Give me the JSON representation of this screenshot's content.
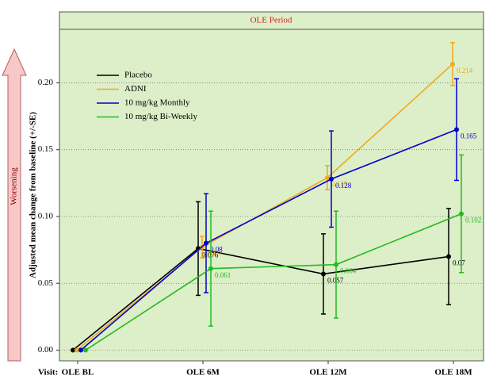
{
  "chart_data": {
    "type": "line",
    "panel_title": "OLE Period",
    "y_label": "Adjusted mean change from baseline (+/-SE)",
    "x_label": "Visit:",
    "arrow_label": "Worsening",
    "categories": [
      "OLE BL",
      "OLE 6M",
      "OLE 12M",
      "OLE 18M"
    ],
    "ylim": [
      -0.008,
      0.24
    ],
    "yticks": [
      {
        "value": 0,
        "label": "0.00"
      },
      {
        "value": 0.05,
        "label": "0.05"
      },
      {
        "value": 0.1,
        "label": "0.10"
      },
      {
        "value": 0.15,
        "label": "0.15"
      },
      {
        "value": 0.2,
        "label": "0.20"
      }
    ],
    "grid": true,
    "legend": "upper left",
    "series": [
      {
        "name": "Placebo",
        "color": "#000000",
        "values": [
          0,
          0.076,
          0.057,
          0.07
        ],
        "errors": [
          null,
          0.035,
          0.03,
          0.036
        ],
        "value_labels": [
          null,
          "0.076",
          "0.057",
          "0.07"
        ]
      },
      {
        "name": "ADNI",
        "color": "#f0a820",
        "values": [
          0,
          0.077,
          0.129,
          0.214
        ],
        "errors": [
          null,
          0.008,
          0.009,
          0.016
        ],
        "value_labels": [
          null,
          "0.077",
          "0.129",
          "0.214"
        ]
      },
      {
        "name": "10 mg/kg Monthly",
        "color": "#0000cc",
        "values": [
          0,
          0.08,
          0.128,
          0.165
        ],
        "errors": [
          null,
          0.037,
          0.036,
          0.038
        ],
        "value_labels": [
          null,
          "0.08",
          "0.128",
          "0.165"
        ]
      },
      {
        "name": "10 mg/kg Bi-Weekly",
        "color": "#22bb22",
        "values": [
          0,
          0.061,
          0.064,
          0.102
        ],
        "errors": [
          null,
          0.043,
          0.04,
          0.044
        ],
        "value_labels": [
          null,
          "0.061",
          "0.064",
          "0.102"
        ]
      }
    ]
  }
}
